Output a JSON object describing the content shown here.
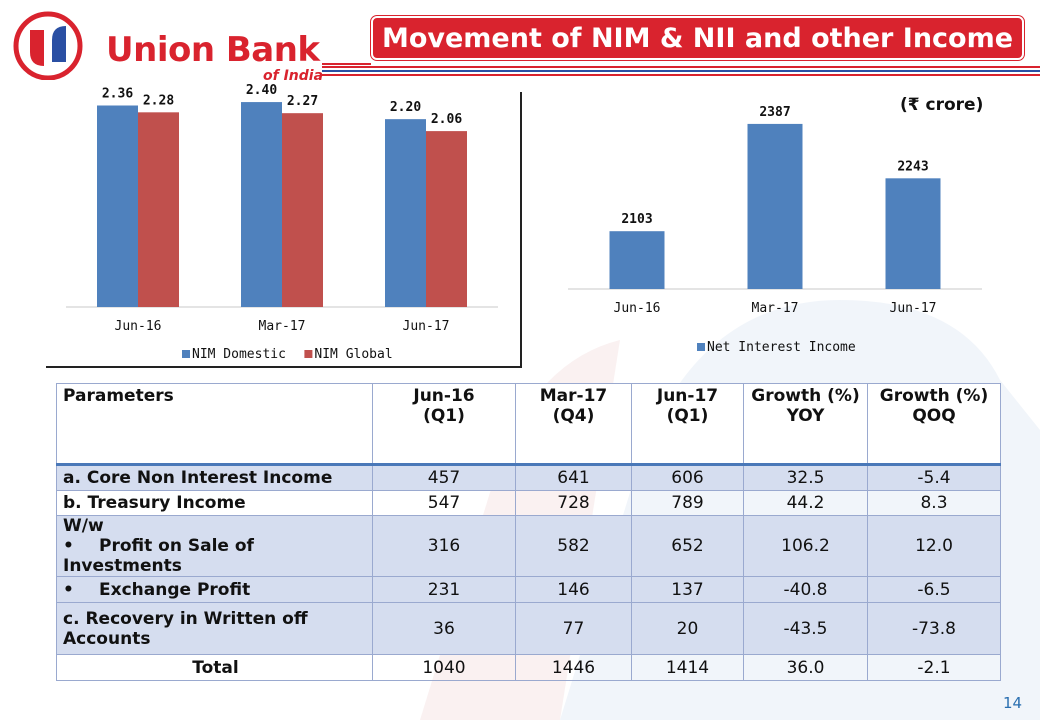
{
  "header": {
    "brand_name": "Union Bank",
    "brand_sub": "of India",
    "title": "Movement of NIM & NII and other Income"
  },
  "unit_label": "(₹ crore)",
  "chart_data": [
    {
      "type": "bar",
      "title": "",
      "categories": [
        "Jun-16",
        "Mar-17",
        "Jun-17"
      ],
      "series": [
        {
          "name": "NIM Domestic",
          "color": "#4f81bd",
          "values": [
            2.36,
            2.4,
            2.2
          ]
        },
        {
          "name": "NIM Global",
          "color": "#c0504d",
          "values": [
            2.28,
            2.27,
            2.06
          ]
        }
      ],
      "value_labels": [
        [
          "2.36",
          "2.40",
          "2.20"
        ],
        [
          "2.28",
          "2.27",
          "2.06"
        ]
      ],
      "ylim": [
        0,
        2.6
      ],
      "legend_position": "bottom",
      "grid": false
    },
    {
      "type": "bar",
      "title": "",
      "categories": [
        "Jun-16",
        "Mar-17",
        "Jun-17"
      ],
      "series": [
        {
          "name": "Net Interest Income",
          "color": "#4f81bd",
          "values": [
            2103,
            2387,
            2243
          ]
        }
      ],
      "value_labels": [
        [
          "2103",
          "2387",
          "2243"
        ]
      ],
      "ylim": [
        1950,
        2400
      ],
      "legend_position": "bottom",
      "grid": false
    }
  ],
  "table": {
    "headers": [
      {
        "l1": "Parameters",
        "l2": ""
      },
      {
        "l1": "Jun-16",
        "l2": "(Q1)"
      },
      {
        "l1": "Mar-17",
        "l2": "(Q4)"
      },
      {
        "l1": "Jun-17",
        "l2": "(Q1)"
      },
      {
        "l1": "Growth (%)",
        "l2": "YOY"
      },
      {
        "l1": "Growth (%)",
        "l2": "QOQ"
      }
    ],
    "rows": [
      {
        "l1": "a. Core Non Interest Income",
        "l2": "",
        "bullet": false,
        "values": [
          "457",
          "641",
          "606",
          "32.5",
          "-5.4"
        ]
      },
      {
        "l1": "b. Treasury Income",
        "l2": "",
        "bullet": false,
        "values": [
          "547",
          "728",
          "789",
          "44.2",
          "8.3"
        ]
      },
      {
        "l1": "W/w",
        "l2": "Profit on Sale of Investments",
        "bullet": true,
        "values": [
          "316",
          "582",
          "652",
          "106.2",
          "12.0"
        ]
      },
      {
        "l1": "Exchange Profit",
        "l2": "",
        "bullet": true,
        "values": [
          "231",
          "146",
          "137",
          "-40.8",
          "-6.5"
        ]
      },
      {
        "l1": "c. Recovery in Written off",
        "l2": "Accounts",
        "bullet": false,
        "values": [
          "36",
          "77",
          "20",
          "-43.5",
          "-73.8"
        ]
      },
      {
        "l1": "Total",
        "l2": "",
        "bullet": false,
        "values": [
          "1040",
          "1446",
          "1414",
          "36.0",
          "-2.1"
        ]
      }
    ]
  },
  "page_number": "14"
}
